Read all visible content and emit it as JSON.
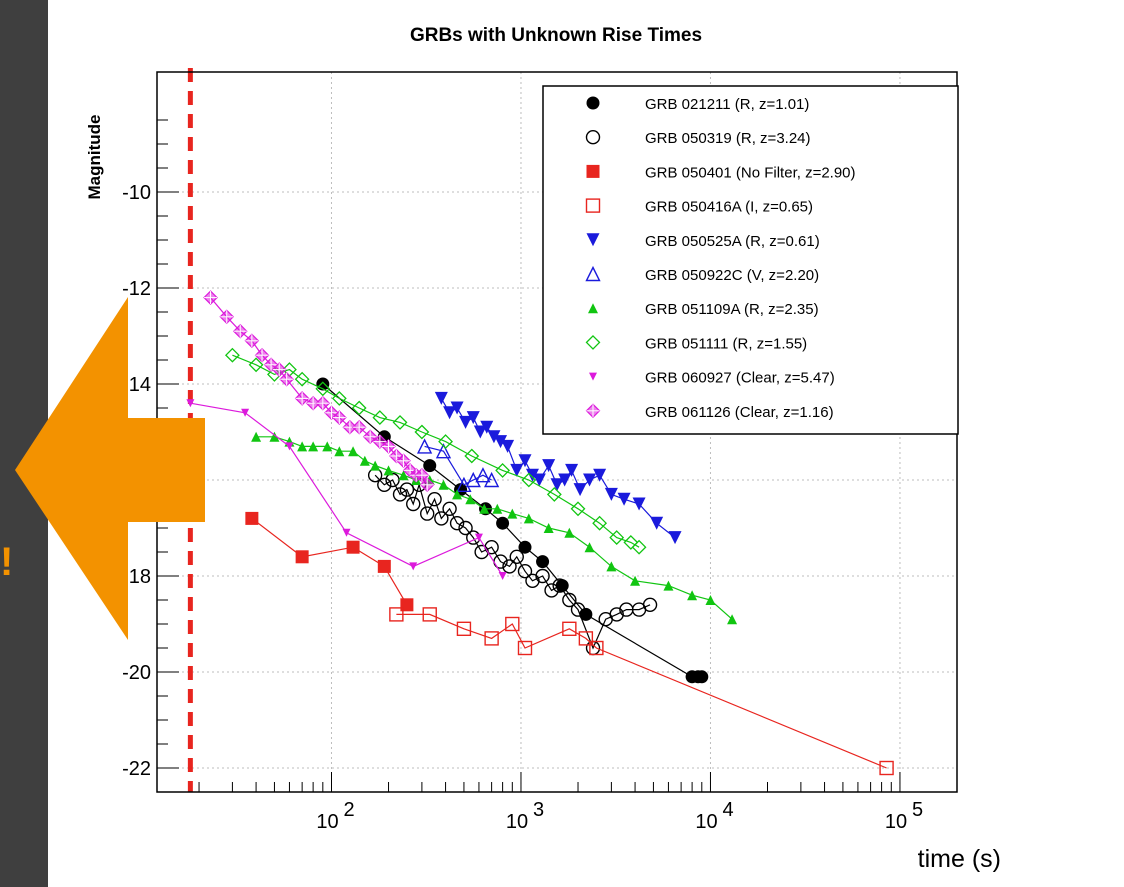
{
  "page": {
    "left_exclamation": "!",
    "arrow_color": "#f39200",
    "sidebar_color": "#3f3f3f"
  },
  "chart_data": {
    "type": "line",
    "title": "GRBs with Unknown Rise Times",
    "xlabel": "time (s)",
    "ylabel": "Magnitude",
    "x_scale": "log",
    "xlim": [
      12,
      200000
    ],
    "ylim": [
      -22.5,
      -7.5
    ],
    "y_inverted": "more negative at bottom",
    "grid": true,
    "legend": "top-right",
    "x_ticks": [
      {
        "value": 100,
        "base": "10",
        "exp": "2"
      },
      {
        "value": 1000,
        "base": "10",
        "exp": "3"
      },
      {
        "value": 10000,
        "base": "10",
        "exp": "4"
      },
      {
        "value": 100000,
        "base": "10",
        "exp": "5"
      }
    ],
    "y_ticks": [
      -10,
      -12,
      -14,
      -16,
      -18,
      -20,
      -22
    ],
    "vertical_marker": {
      "x": 18,
      "color": "#e8251f",
      "style": "dashed"
    },
    "series": [
      {
        "name": "GRB 021211 (R, z=1.01)",
        "color": "#000000",
        "marker": "circle-filled",
        "x": [
          90,
          190,
          330,
          480,
          650,
          800,
          1050,
          1300,
          1650,
          2200,
          8000,
          8600,
          9000
        ],
        "y": [
          -14.0,
          -15.1,
          -15.7,
          -16.2,
          -16.6,
          -16.9,
          -17.4,
          -17.7,
          -18.2,
          -18.8,
          -20.1,
          -20.1,
          -20.1
        ]
      },
      {
        "name": "GRB 050319 (R, z=3.24)",
        "color": "#000000",
        "marker": "circle-open",
        "x": [
          170,
          190,
          210,
          230,
          250,
          270,
          290,
          320,
          350,
          380,
          420,
          460,
          510,
          560,
          620,
          700,
          780,
          870,
          950,
          1050,
          1150,
          1300,
          1450,
          1600,
          1800,
          2000,
          2400,
          2800,
          3200,
          3600,
          4200,
          4800
        ],
        "y": [
          -15.9,
          -16.1,
          -16.0,
          -16.3,
          -16.2,
          -16.5,
          -16.1,
          -16.7,
          -16.4,
          -16.8,
          -16.6,
          -16.9,
          -17.0,
          -17.2,
          -17.5,
          -17.4,
          -17.7,
          -17.8,
          -17.6,
          -17.9,
          -18.1,
          -18.0,
          -18.3,
          -18.2,
          -18.5,
          -18.7,
          -19.5,
          -18.9,
          -18.8,
          -18.7,
          -18.7,
          -18.6
        ]
      },
      {
        "name": "GRB 050401 (No Filter, z=2.90)",
        "color": "#e8251f",
        "marker": "square-filled",
        "x": [
          38,
          70,
          130,
          190,
          250
        ],
        "y": [
          -16.8,
          -17.6,
          -17.4,
          -17.8,
          -18.6
        ]
      },
      {
        "name": "GRB 050416A (I, z=0.65)",
        "color": "#e8251f",
        "marker": "square-open",
        "x": [
          220,
          330,
          500,
          700,
          900,
          1050,
          1800,
          2200,
          2500,
          85000
        ],
        "y": [
          -18.8,
          -18.8,
          -19.1,
          -19.3,
          -19.0,
          -19.5,
          -19.1,
          -19.3,
          -19.5,
          -22.0
        ]
      },
      {
        "name": "GRB 050525A (R, z=0.61)",
        "color": "#1a1adc",
        "marker": "triangle-down-filled",
        "x": [
          380,
          420,
          460,
          510,
          560,
          610,
          660,
          720,
          780,
          850,
          950,
          1050,
          1150,
          1250,
          1400,
          1550,
          1700,
          1850,
          2050,
          2300,
          2600,
          3000,
          3500,
          4200,
          5200,
          6500
        ],
        "y": [
          -14.3,
          -14.6,
          -14.5,
          -14.8,
          -14.7,
          -15.0,
          -14.9,
          -15.1,
          -15.2,
          -15.3,
          -15.8,
          -15.6,
          -15.9,
          -16.0,
          -15.7,
          -16.1,
          -16.0,
          -15.8,
          -16.2,
          -16.0,
          -15.9,
          -16.3,
          -16.4,
          -16.5,
          -16.9,
          -17.2
        ]
      },
      {
        "name": "GRB 050922C (V, z=2.20)",
        "color": "#1a1adc",
        "marker": "triangle-up-open",
        "x": [
          310,
          390,
          500,
          560,
          630,
          700
        ],
        "y": [
          -15.3,
          -15.4,
          -16.1,
          -16.0,
          -15.9,
          -16.0
        ]
      },
      {
        "name": "GRB 051109A (R, z=2.35)",
        "color": "#11c511",
        "marker": "triangle-up-filled",
        "x": [
          40,
          50,
          60,
          70,
          80,
          95,
          110,
          130,
          150,
          170,
          200,
          240,
          280,
          330,
          390,
          460,
          540,
          640,
          750,
          900,
          1100,
          1400,
          1800,
          2300,
          3000,
          4000,
          6000,
          8000,
          10000,
          13000
        ],
        "y": [
          -15.1,
          -15.1,
          -15.2,
          -15.3,
          -15.3,
          -15.3,
          -15.4,
          -15.4,
          -15.6,
          -15.7,
          -15.8,
          -15.9,
          -16.0,
          -16.0,
          -16.1,
          -16.3,
          -16.4,
          -16.6,
          -16.6,
          -16.7,
          -16.8,
          -17.0,
          -17.1,
          -17.4,
          -17.8,
          -18.1,
          -18.2,
          -18.4,
          -18.5,
          -18.9
        ]
      },
      {
        "name": "GRB 051111 (R, z=1.55)",
        "color": "#11c511",
        "marker": "diamond-open",
        "x": [
          30,
          40,
          50,
          60,
          70,
          90,
          110,
          140,
          180,
          230,
          300,
          400,
          550,
          800,
          1100,
          1500,
          2000,
          2600,
          3200,
          3800,
          4200
        ],
        "y": [
          -13.4,
          -13.6,
          -13.8,
          -13.7,
          -13.9,
          -14.1,
          -14.3,
          -14.5,
          -14.7,
          -14.8,
          -15.0,
          -15.2,
          -15.5,
          -15.8,
          -16.0,
          -16.3,
          -16.6,
          -16.9,
          -17.2,
          -17.3,
          -17.4
        ]
      },
      {
        "name": "GRB 060927 (Clear, z=5.47)",
        "color": "#dc1adc",
        "marker": "triangle-down-filled-small",
        "x": [
          18,
          35,
          60,
          120,
          270,
          600,
          800
        ],
        "y": [
          -14.4,
          -14.6,
          -15.3,
          -17.1,
          -17.8,
          -17.2,
          -18.0
        ]
      },
      {
        "name": "GRB 061126 (Clear, z=1.16)",
        "color": "#dc1adc",
        "marker": "cross-diamond",
        "x": [
          23,
          28,
          33,
          38,
          43,
          48,
          53,
          58,
          70,
          80,
          90,
          100,
          110,
          125,
          140,
          160,
          180,
          200,
          220,
          240,
          260,
          280,
          300,
          320
        ],
        "y": [
          -12.2,
          -12.6,
          -12.9,
          -13.1,
          -13.4,
          -13.6,
          -13.7,
          -13.9,
          -14.3,
          -14.4,
          -14.4,
          -14.6,
          -14.7,
          -14.9,
          -14.9,
          -15.1,
          -15.2,
          -15.3,
          -15.5,
          -15.6,
          -15.8,
          -15.9,
          -15.9,
          -16.1
        ]
      }
    ]
  }
}
